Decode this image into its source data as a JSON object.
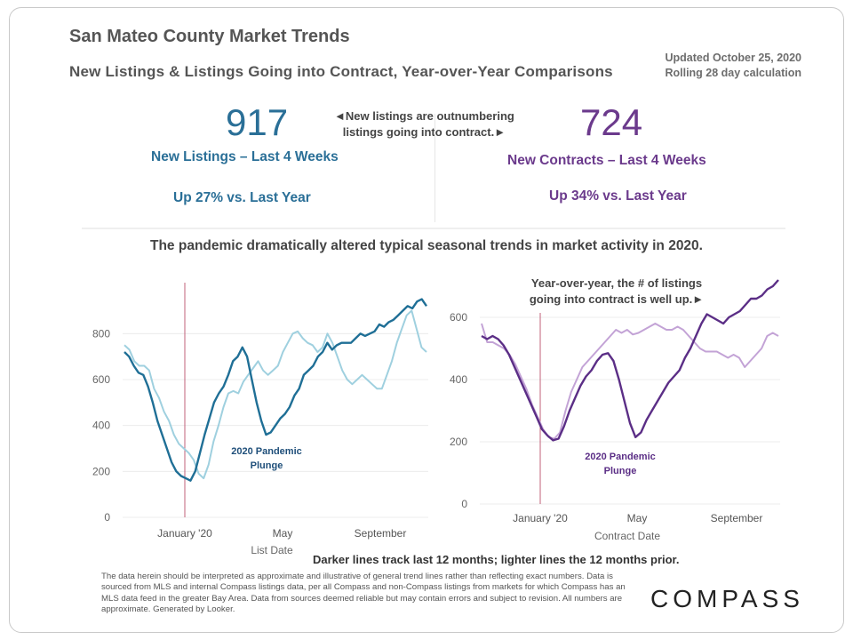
{
  "header": {
    "title": "San Mateo County Market Trends",
    "subtitle": "New Listings & Listings Going into Contract, Year-over-Year Comparisons",
    "updated_line1": "Updated October 25, 2020",
    "updated_line2": "Rolling 28 day calculation"
  },
  "kpi_left": {
    "value": "917",
    "label": "New Listings – Last 4 Weeks",
    "change": "Up 27% vs. Last Year"
  },
  "kpi_right": {
    "value": "724",
    "label": "New Contracts – Last 4 Weeks",
    "change": "Up 34% vs. Last Year"
  },
  "kpi_note": {
    "line1": "◄New listings are outnumbering",
    "line2": "listings going into contract.►"
  },
  "section_heading": "The pandemic dramatically altered typical seasonal trends in market activity in 2020.",
  "footer_note": "Darker lines track last 12 months; lighter lines the 12 months prior.",
  "disclaimer": "The data herein should be interpreted as approximate and illustrative of general trend lines rather than reflecting exact numbers. Data is sourced from MLS and internal Compass listings data, per all Compass and non-Compass listings from markets for which Compass has an MLS data feed in the greater Bay Area. Data from sources deemed reliable but may contain errors and subject to revision. All numbers are approximate. Generated by Looker.",
  "logo": "COMPASS",
  "colors": {
    "blue_dark": "#1f6f96",
    "blue_light": "#9fd0df",
    "purple_dark": "#5b2e86",
    "purple_light": "#c3a3d6",
    "marker": "#c0607a"
  },
  "chart_data": [
    {
      "type": "line",
      "xlabel": "List Date",
      "ylabel": "",
      "ylim": [
        0,
        960
      ],
      "yticks": [
        0,
        200,
        400,
        600,
        800
      ],
      "xticks": [
        "January '20",
        "May",
        "September"
      ],
      "annotation": {
        "line1": "2020 Pandemic",
        "line2": "Plunge"
      },
      "series": [
        {
          "role": "last 12 months",
          "values": [
            720,
            700,
            660,
            630,
            620,
            570,
            500,
            420,
            360,
            300,
            240,
            200,
            180,
            170,
            160,
            200,
            280,
            360,
            430,
            500,
            540,
            570,
            620,
            680,
            700,
            740,
            700,
            600,
            500,
            420,
            360,
            370,
            400,
            430,
            450,
            480,
            530,
            560,
            620,
            640,
            660,
            700,
            720,
            760,
            730,
            750,
            760,
            760,
            760,
            780,
            800,
            790,
            800,
            810,
            840,
            830,
            850,
            860,
            880,
            900,
            920,
            910,
            940,
            950,
            920
          ]
        },
        {
          "role": "12 months prior",
          "values": [
            750,
            730,
            680,
            660,
            660,
            640,
            560,
            520,
            460,
            420,
            360,
            320,
            300,
            280,
            250,
            190,
            170,
            230,
            330,
            400,
            480,
            540,
            550,
            540,
            590,
            620,
            650,
            680,
            640,
            620,
            640,
            660,
            720,
            760,
            800,
            810,
            780,
            760,
            750,
            720,
            740,
            800,
            760,
            700,
            640,
            600,
            580,
            600,
            620,
            600,
            580,
            560,
            560,
            620,
            680,
            760,
            820,
            880,
            900,
            820,
            740,
            720
          ]
        }
      ]
    },
    {
      "type": "line",
      "xlabel": "Contract Date",
      "ylabel": "",
      "ylim": [
        0,
        700
      ],
      "yticks": [
        0,
        200,
        400,
        600
      ],
      "xticks": [
        "January '20",
        "May",
        "September"
      ],
      "annotation": {
        "line1": "2020 Pandemic",
        "line2": "Plunge"
      },
      "callout": {
        "line1": "Year-over-year, the # of listings",
        "line2": "going into contract is well up.►"
      },
      "series": [
        {
          "role": "last 12 months",
          "values": [
            540,
            530,
            540,
            530,
            510,
            480,
            440,
            400,
            360,
            320,
            280,
            240,
            220,
            205,
            210,
            250,
            300,
            340,
            380,
            410,
            430,
            460,
            480,
            485,
            460,
            400,
            330,
            260,
            215,
            230,
            270,
            300,
            330,
            360,
            390,
            410,
            430,
            470,
            500,
            540,
            580,
            610,
            600,
            590,
            580,
            600,
            610,
            620,
            640,
            660,
            660,
            670,
            690,
            700,
            720
          ]
        },
        {
          "role": "12 months prior",
          "values": [
            580,
            520,
            520,
            510,
            500,
            480,
            450,
            410,
            370,
            320,
            280,
            240,
            215,
            210,
            230,
            300,
            360,
            400,
            440,
            460,
            480,
            500,
            520,
            540,
            560,
            550,
            560,
            545,
            550,
            560,
            570,
            580,
            570,
            560,
            560,
            570,
            560,
            540,
            520,
            500,
            490,
            490,
            490,
            480,
            470,
            480,
            470,
            440,
            460,
            480,
            500,
            540,
            550,
            540
          ]
        }
      ]
    }
  ]
}
